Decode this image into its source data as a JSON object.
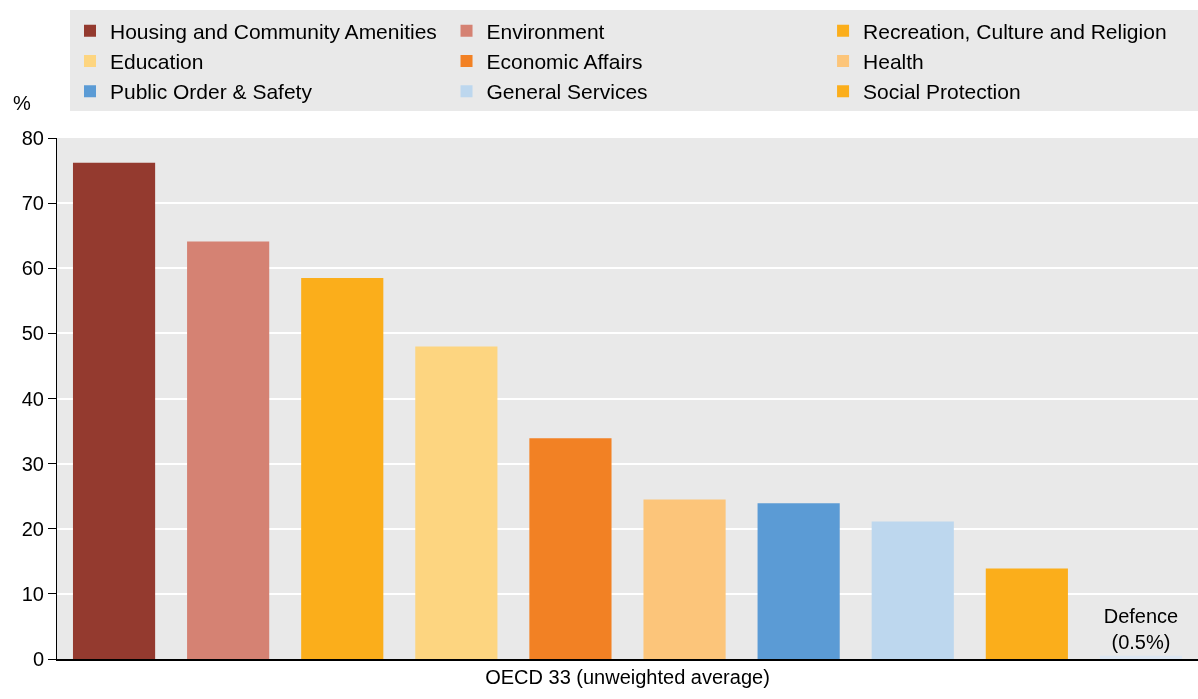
{
  "chart_data": {
    "type": "bar",
    "ylabel": "%",
    "xlabel": "OECD 33 (unweighted average)",
    "categories": [
      null
    ],
    "series": [
      {
        "name": "Housing and Community Amenities",
        "color": "#943a2f",
        "values": [
          76.2
        ]
      },
      {
        "name": "Environment",
        "color": "#d58273",
        "values": [
          64.1
        ]
      },
      {
        "name": "Recreation, Culture and Religion",
        "color": "#fbae1b",
        "values": [
          58.5
        ]
      },
      {
        "name": "Education",
        "color": "#fdd580",
        "values": [
          48.0
        ]
      },
      {
        "name": "Economic Affairs",
        "color": "#f28124",
        "values": [
          33.9
        ]
      },
      {
        "name": "Health",
        "color": "#fcc57a",
        "values": [
          24.5
        ]
      },
      {
        "name": "Public Order & Safety",
        "color": "#5b9bd5",
        "values": [
          23.9
        ]
      },
      {
        "name": "General Services",
        "color": "#bdd7ee",
        "values": [
          21.1
        ]
      },
      {
        "name": "Social Protection",
        "color": "#fbae1b",
        "values": [
          13.9
        ]
      },
      {
        "name": "Defence",
        "color": "#dce6f2",
        "values": [
          0.5
        ],
        "value_labels": [
          "(0.5%)"
        ]
      }
    ],
    "ylim": [
      0,
      80
    ],
    "yticks": [
      0,
      10,
      20,
      30,
      40,
      50,
      60,
      70,
      80
    ],
    "grid": "y",
    "legend": "top"
  }
}
